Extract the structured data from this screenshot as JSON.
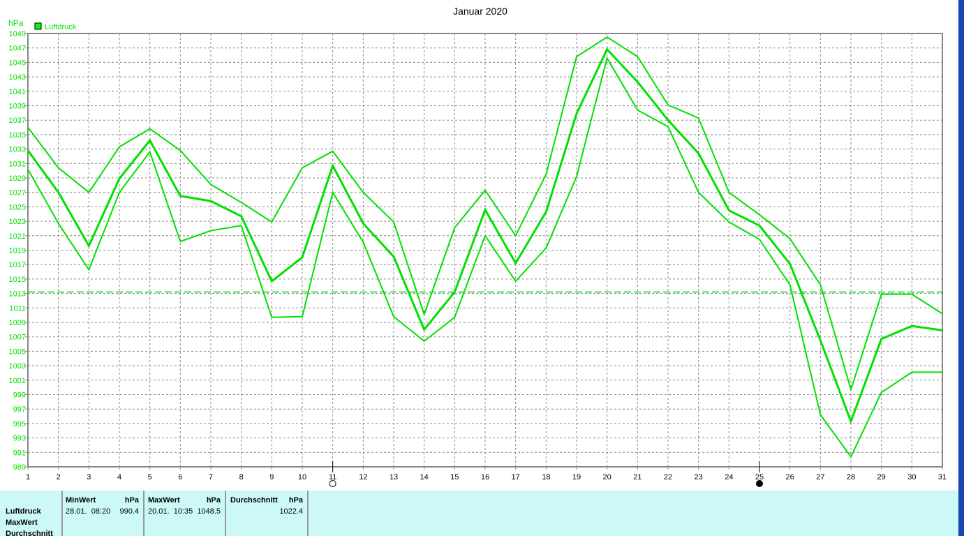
{
  "chart_data": {
    "type": "line",
    "title": "Januar 2020",
    "ylabel": "hPa",
    "legend": [
      "Luftdruck"
    ],
    "legend_placement": "top-left",
    "ylim": [
      989,
      1049
    ],
    "yticks": [
      989,
      991,
      993,
      995,
      997,
      999,
      1001,
      1003,
      1005,
      1007,
      1009,
      1011,
      1013,
      1015,
      1017,
      1019,
      1021,
      1023,
      1025,
      1027,
      1029,
      1031,
      1033,
      1035,
      1037,
      1039,
      1041,
      1043,
      1045,
      1047,
      1049
    ],
    "x": [
      1,
      2,
      3,
      4,
      5,
      6,
      7,
      8,
      9,
      10,
      11,
      12,
      13,
      14,
      15,
      16,
      17,
      18,
      19,
      20,
      21,
      22,
      23,
      24,
      25,
      26,
      27,
      28,
      29,
      30,
      31
    ],
    "grid": true,
    "reference_line": 1013.2,
    "moon_markers": [
      {
        "day": 11,
        "phase": "full-moon"
      },
      {
        "day": 25,
        "phase": "new-moon"
      }
    ],
    "color": "#00e000",
    "series": [
      {
        "values": [
          1036.0,
          1030.4,
          1027.0,
          1033.3,
          1035.8,
          1032.8,
          1028.1,
          1025.6,
          1022.9,
          1030.4,
          1032.7,
          1027.0,
          1022.9,
          1010.1,
          1022.1,
          1027.3,
          1021.0,
          1029.5,
          1045.8,
          1048.5,
          1045.8,
          1039.1,
          1037.3,
          1027.0,
          1023.9,
          1020.6,
          1014.2,
          999.7,
          1012.9,
          1012.9,
          1010.2
        ]
      },
      {
        "values": [
          1032.8,
          1027.0,
          1019.6,
          1028.9,
          1034.2,
          1026.5,
          1025.8,
          1023.7,
          1014.7,
          1018.0,
          1030.7,
          1022.7,
          1018.1,
          1008.0,
          1013.2,
          1024.6,
          1017.2,
          1024.3,
          1037.9,
          1046.8,
          1042.3,
          1037.0,
          1032.4,
          1024.5,
          1022.4,
          1017.1,
          1006.5,
          995.3,
          1006.7,
          1008.5,
          1007.9
        ]
      },
      {
        "values": [
          1030.2,
          1022.7,
          1016.3,
          1027.0,
          1032.6,
          1020.2,
          1021.7,
          1022.4,
          1009.7,
          1009.8,
          1027.0,
          1020.1,
          1009.8,
          1006.4,
          1009.7,
          1021.0,
          1014.7,
          1019.3,
          1029.2,
          1045.6,
          1038.4,
          1036.1,
          1027.0,
          1022.9,
          1020.5,
          1014.2,
          996.2,
          990.4,
          999.3,
          1002.1,
          1002.1
        ]
      }
    ]
  },
  "table": {
    "row_labels": [
      "Luftdruck",
      "MaxWert",
      "Durchschnitt"
    ],
    "min": {
      "header": "MinWert",
      "unit": "hPa",
      "time": "28.01.  08:20",
      "value": "990.4"
    },
    "max": {
      "header": "MaxWert",
      "unit": "hPa",
      "time": "20.01.  10:35",
      "value": "1048.5"
    },
    "avg": {
      "header": "Durchschnitt",
      "unit": "hPa",
      "value": "1022.4"
    }
  }
}
